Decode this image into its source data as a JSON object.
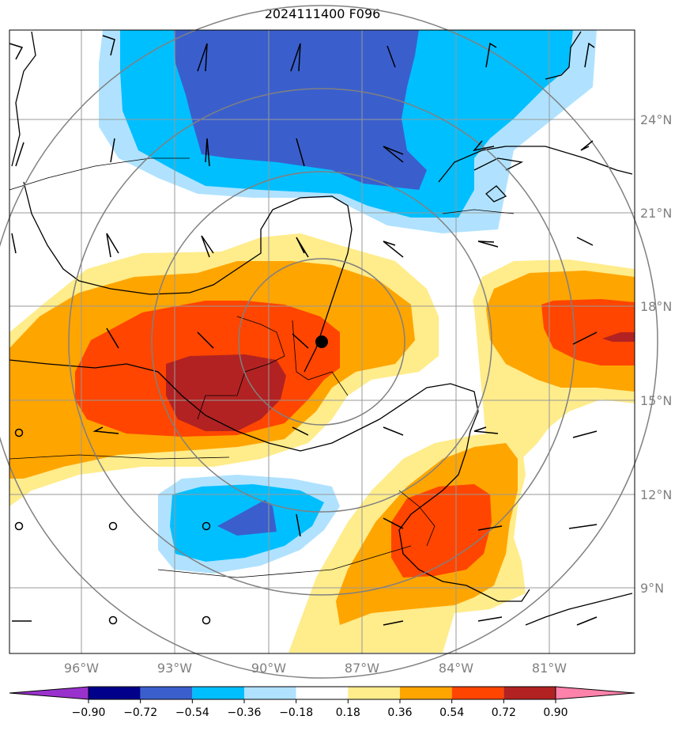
{
  "title": "2024111400 F096",
  "lon_labels": [
    "96°W",
    "93°W",
    "90°W",
    "87°W",
    "84°W",
    "81°W"
  ],
  "lat_labels": [
    "24°N",
    "21°N",
    "18°N",
    "15°N",
    "12°N",
    "9°N"
  ],
  "colorbar": {
    "tick_labels": [
      "−0.90",
      "−0.72",
      "−0.54",
      "−0.36",
      "−0.18",
      "0.18",
      "0.36",
      "0.54",
      "0.72",
      "0.90"
    ],
    "colors": [
      "#9932cc",
      "#00008b",
      "#3a5fcd",
      "#00bfff",
      "#b0e2ff",
      "#ffffff",
      "#ffec8b",
      "#ffa500",
      "#ff4500",
      "#b22222",
      "#ff82ab"
    ]
  },
  "palette": {
    "dark_blue": "#3a5fcd",
    "mid_blue": "#00bfff",
    "light_blue": "#b0e2ff",
    "light_yellow": "#ffec8b",
    "orange": "#ffa500",
    "red_orange": "#ff4500",
    "dark_red": "#b22222",
    "gridline": "#999999",
    "range_ring": "#808080",
    "axis_label": "#808080"
  },
  "center_marker": "storm-center"
}
